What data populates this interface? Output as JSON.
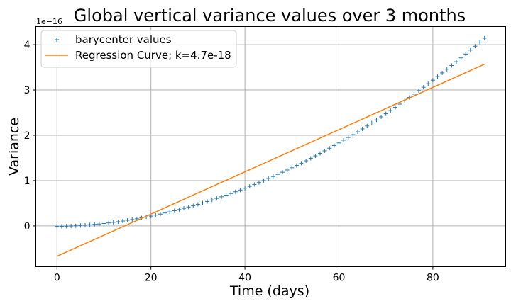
{
  "chart_data": {
    "type": "scatter",
    "title": "Global vertical variance values over 3 months",
    "xlabel": "Time (days)",
    "ylabel": "Variance",
    "y_offset_label": "1e−16",
    "xlim": [
      -4.5,
      95.5
    ],
    "ylim": [
      -0.9,
      4.4
    ],
    "x_ticks": [
      0,
      20,
      40,
      60,
      80
    ],
    "y_ticks": [
      0,
      1,
      2,
      3,
      4
    ],
    "grid": true,
    "legend_position": "top-left",
    "series": [
      {
        "name": "barycenter values",
        "kind": "scatter",
        "marker": "+",
        "color": "#1f77b4",
        "model": {
          "a": -0.0116,
          "b": 0.0018,
          "c": 0.000482,
          "x_start": 0,
          "x_end": 91
        }
      },
      {
        "name": "Regression Curve; k=4.7e-18",
        "kind": "line",
        "color": "#ff7f0e",
        "x": [
          0,
          91
        ],
        "y": [
          -0.67,
          3.57
        ]
      }
    ]
  }
}
